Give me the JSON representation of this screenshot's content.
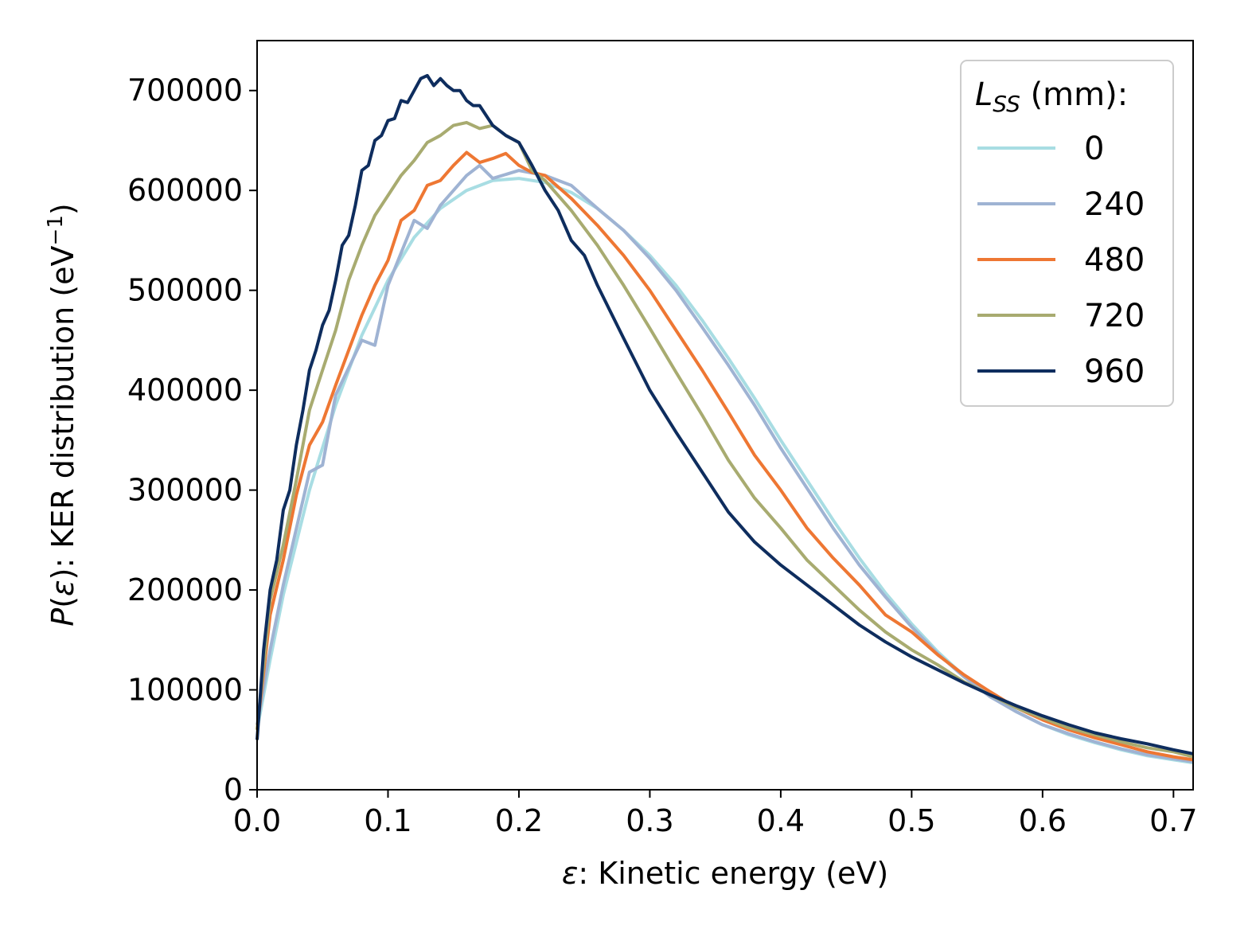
{
  "chart_data": {
    "type": "line",
    "title": "",
    "xlabel": {
      "symbol": "ε",
      "text": ": Kinetic energy (eV)"
    },
    "ylabel": {
      "symbol": "P",
      "open": "(",
      "symbol2": "ε",
      "close": ")",
      "text": ": KER distribution (eV",
      "sup": "−1",
      "tail": ")"
    },
    "xlim": [
      0,
      0.715
    ],
    "ylim": [
      0,
      750000
    ],
    "xticks": [
      0.0,
      0.1,
      0.2,
      0.3,
      0.4,
      0.5,
      0.6,
      0.7
    ],
    "xtick_labels": [
      "0.0",
      "0.1",
      "0.2",
      "0.3",
      "0.4",
      "0.5",
      "0.6",
      "0.7"
    ],
    "yticks": [
      0,
      100000,
      200000,
      300000,
      400000,
      500000,
      600000,
      700000
    ],
    "ytick_labels": [
      "0",
      "100000",
      "200000",
      "300000",
      "400000",
      "500000",
      "600000",
      "700000"
    ],
    "grid": false,
    "legend": {
      "position": "top-right",
      "title_symbol": "L",
      "title_sub": "SS",
      "title_rest": " (mm):"
    },
    "series": [
      {
        "name": "0",
        "color": "#a8dde3",
        "x": [
          0.0,
          0.01,
          0.02,
          0.04,
          0.06,
          0.08,
          0.1,
          0.12,
          0.14,
          0.16,
          0.18,
          0.2,
          0.22,
          0.24,
          0.26,
          0.28,
          0.3,
          0.32,
          0.34,
          0.36,
          0.38,
          0.4,
          0.42,
          0.44,
          0.46,
          0.48,
          0.5,
          0.52,
          0.54,
          0.56,
          0.58,
          0.6,
          0.62,
          0.64,
          0.66,
          0.68,
          0.7,
          0.715
        ],
        "y": [
          60000,
          130000,
          195000,
          300000,
          385000,
          455000,
          510000,
          553000,
          582000,
          600000,
          610000,
          612000,
          608000,
          598000,
          582000,
          560000,
          535000,
          505000,
          470000,
          432000,
          392000,
          350000,
          310000,
          270000,
          232000,
          197000,
          166000,
          138000,
          114000,
          94000,
          78000,
          65000,
          55000,
          47000,
          40000,
          34000,
          30000,
          27000
        ]
      },
      {
        "name": "240",
        "color": "#9fb3d3",
        "x": [
          0.0,
          0.01,
          0.02,
          0.04,
          0.05,
          0.06,
          0.08,
          0.09,
          0.1,
          0.12,
          0.13,
          0.14,
          0.16,
          0.17,
          0.18,
          0.2,
          0.22,
          0.24,
          0.26,
          0.28,
          0.3,
          0.32,
          0.34,
          0.36,
          0.38,
          0.4,
          0.42,
          0.44,
          0.46,
          0.48,
          0.5,
          0.52,
          0.54,
          0.56,
          0.58,
          0.6,
          0.62,
          0.64,
          0.66,
          0.68,
          0.7,
          0.715
        ],
        "y": [
          65000,
          140000,
          205000,
          318000,
          325000,
          395000,
          450000,
          445000,
          505000,
          570000,
          562000,
          585000,
          615000,
          625000,
          612000,
          620000,
          615000,
          605000,
          582000,
          560000,
          532000,
          500000,
          463000,
          425000,
          385000,
          342000,
          302000,
          262000,
          225000,
          193000,
          163000,
          136000,
          113000,
          93000,
          78000,
          65000,
          56000,
          48000,
          41000,
          35000,
          31000,
          28000
        ]
      },
      {
        "name": "480",
        "color": "#ee7733",
        "x": [
          0.0,
          0.01,
          0.02,
          0.03,
          0.04,
          0.05,
          0.06,
          0.07,
          0.08,
          0.09,
          0.1,
          0.11,
          0.12,
          0.13,
          0.14,
          0.15,
          0.16,
          0.17,
          0.18,
          0.19,
          0.2,
          0.21,
          0.22,
          0.24,
          0.26,
          0.28,
          0.3,
          0.32,
          0.34,
          0.36,
          0.38,
          0.4,
          0.42,
          0.44,
          0.46,
          0.48,
          0.5,
          0.52,
          0.54,
          0.56,
          0.58,
          0.6,
          0.62,
          0.64,
          0.66,
          0.68,
          0.7,
          0.715
        ],
        "y": [
          60000,
          175000,
          230000,
          295000,
          345000,
          368000,
          405000,
          440000,
          475000,
          505000,
          530000,
          570000,
          580000,
          605000,
          610000,
          625000,
          638000,
          628000,
          632000,
          637000,
          625000,
          618000,
          615000,
          592000,
          565000,
          535000,
          500000,
          460000,
          420000,
          378000,
          335000,
          300000,
          262000,
          232000,
          205000,
          175000,
          158000,
          135000,
          115000,
          98000,
          82000,
          70000,
          60000,
          52000,
          45000,
          38000,
          33000,
          30000
        ]
      },
      {
        "name": "720",
        "color": "#a8ab70",
        "x": [
          0.0,
          0.01,
          0.02,
          0.03,
          0.04,
          0.05,
          0.06,
          0.07,
          0.08,
          0.09,
          0.1,
          0.11,
          0.12,
          0.13,
          0.14,
          0.15,
          0.16,
          0.17,
          0.18,
          0.19,
          0.2,
          0.21,
          0.22,
          0.24,
          0.26,
          0.28,
          0.3,
          0.32,
          0.34,
          0.36,
          0.38,
          0.4,
          0.42,
          0.44,
          0.46,
          0.48,
          0.5,
          0.52,
          0.54,
          0.56,
          0.58,
          0.6,
          0.62,
          0.64,
          0.66,
          0.68,
          0.7,
          0.715
        ],
        "y": [
          60000,
          190000,
          245000,
          310000,
          380000,
          420000,
          460000,
          510000,
          545000,
          575000,
          595000,
          615000,
          630000,
          648000,
          655000,
          665000,
          668000,
          662000,
          665000,
          655000,
          648000,
          620000,
          610000,
          580000,
          545000,
          505000,
          462000,
          418000,
          375000,
          330000,
          292000,
          262000,
          230000,
          205000,
          180000,
          158000,
          140000,
          125000,
          108000,
          95000,
          82000,
          72000,
          62000,
          55000,
          48000,
          42000,
          38000,
          33000
        ]
      },
      {
        "name": "960",
        "color": "#0e2d5e",
        "x": [
          0.0,
          0.005,
          0.01,
          0.015,
          0.02,
          0.025,
          0.03,
          0.035,
          0.04,
          0.045,
          0.05,
          0.055,
          0.06,
          0.065,
          0.07,
          0.075,
          0.08,
          0.085,
          0.09,
          0.095,
          0.1,
          0.105,
          0.11,
          0.115,
          0.12,
          0.125,
          0.13,
          0.135,
          0.14,
          0.145,
          0.15,
          0.155,
          0.16,
          0.165,
          0.17,
          0.18,
          0.19,
          0.2,
          0.21,
          0.22,
          0.23,
          0.24,
          0.25,
          0.26,
          0.28,
          0.3,
          0.32,
          0.34,
          0.36,
          0.38,
          0.4,
          0.42,
          0.44,
          0.46,
          0.48,
          0.5,
          0.52,
          0.54,
          0.56,
          0.58,
          0.6,
          0.62,
          0.64,
          0.66,
          0.68,
          0.7,
          0.715
        ],
        "y": [
          50000,
          140000,
          200000,
          230000,
          280000,
          300000,
          345000,
          380000,
          420000,
          440000,
          465000,
          480000,
          510000,
          545000,
          555000,
          585000,
          620000,
          625000,
          650000,
          655000,
          670000,
          672000,
          690000,
          688000,
          700000,
          712000,
          715000,
          705000,
          712000,
          705000,
          700000,
          700000,
          690000,
          685000,
          685000,
          665000,
          655000,
          648000,
          625000,
          600000,
          580000,
          550000,
          535000,
          505000,
          452000,
          400000,
          358000,
          318000,
          278000,
          248000,
          225000,
          205000,
          185000,
          165000,
          148000,
          133000,
          120000,
          107000,
          95000,
          84000,
          74000,
          65000,
          57000,
          51000,
          46000,
          40000,
          36000
        ]
      }
    ]
  }
}
